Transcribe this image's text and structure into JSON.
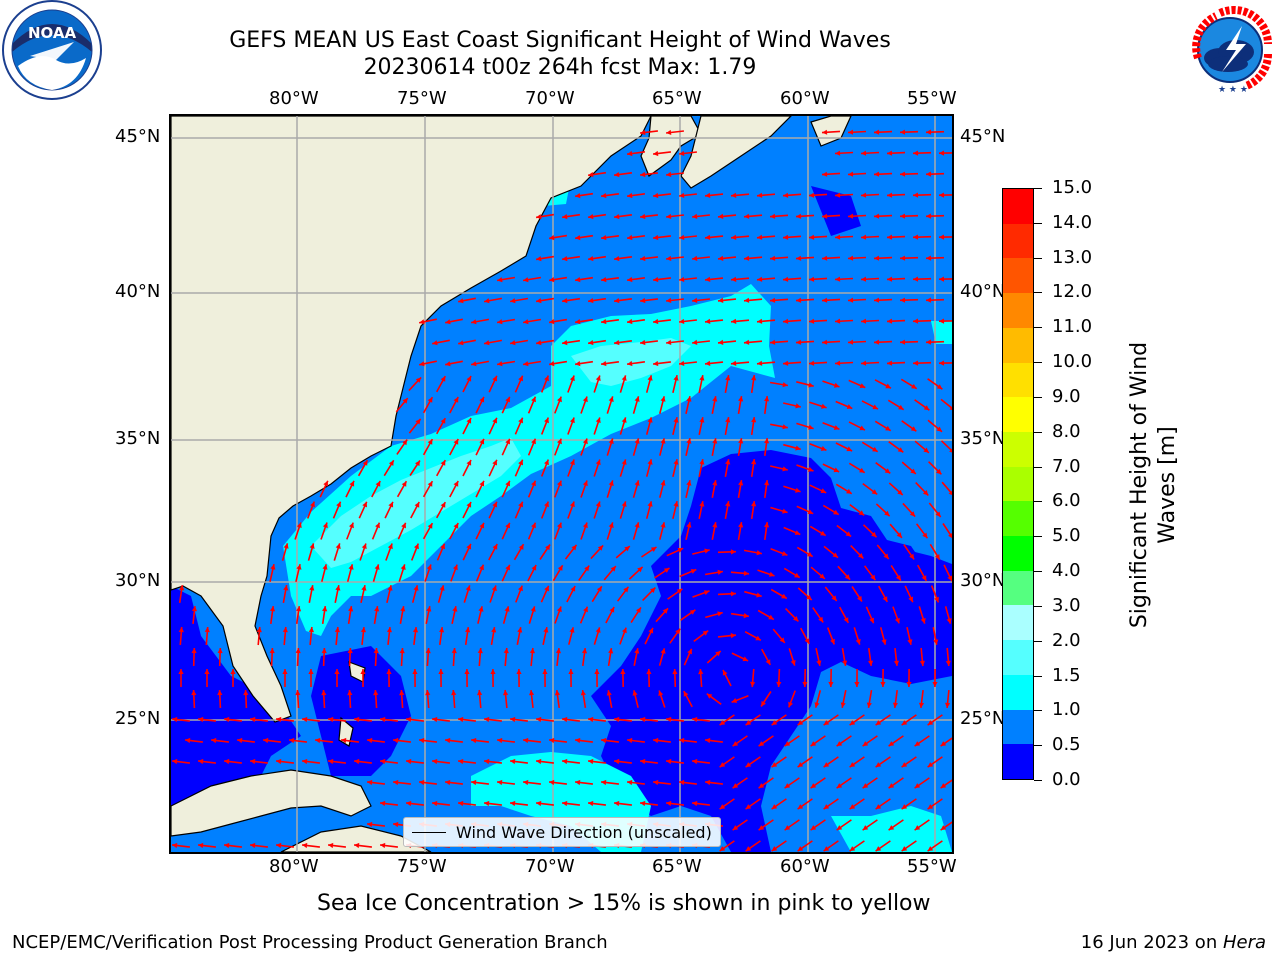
{
  "header": {
    "title_line1": "GEFS MEAN US East Coast Significant Height of Wind Waves",
    "title_line2": "20230614 t00z 264h fcst   Max: 1.79"
  },
  "logos": {
    "left": {
      "name": "noaa-logo",
      "text": "NOAA",
      "ring_text": "NATIONAL OCEANIC AND ATMOSPHERIC ADMINISTRATION · U.S. DEPARTMENT OF COMMERCE"
    },
    "right": {
      "name": "national-weather-service-logo",
      "ring_text": "NATIONAL WEATHER SERVICE"
    }
  },
  "map": {
    "lon_ticks": [
      "80°W",
      "75°W",
      "70°W",
      "65°W",
      "60°W",
      "55°W"
    ],
    "lat_ticks": [
      "45°N",
      "40°N",
      "35°N",
      "30°N",
      "25°N"
    ],
    "lon_range": [
      -85,
      -54.3
    ],
    "lat_range": [
      20.3,
      45.8
    ],
    "lon_values": [
      -80,
      -75,
      -70,
      -65,
      -60,
      -55
    ],
    "lat_values": [
      45,
      40,
      35,
      30,
      25
    ],
    "land_color": "#efefdc",
    "arrow_color": "#ff0000",
    "grid": true
  },
  "legend": {
    "label": "Wind Wave Direction (unscaled)"
  },
  "colorbar": {
    "label": "Significant Height of Wind Waves [m]",
    "label_line1": "Significant Height of Wind",
    "label_line2": "Waves [m]",
    "ticks": [
      "15.0",
      "14.0",
      "13.0",
      "12.0",
      "11.0",
      "10.0",
      "9.0",
      "8.0",
      "7.0",
      "6.0",
      "5.0",
      "4.0",
      "3.0",
      "2.0",
      "1.5",
      "1.0",
      "0.5",
      "0.0"
    ],
    "levels": [
      0.0,
      0.5,
      1.0,
      1.5,
      2.0,
      2.5,
      3.0,
      4.0,
      5.0,
      6.0,
      7.0,
      8.0,
      9.0,
      10.0,
      11.0,
      12.0,
      13.0,
      14.0,
      15.0
    ],
    "colors": [
      "#0000ff",
      "#0080ff",
      "#00ffff",
      "#55ffff",
      "#aaffff",
      "#55ff80",
      "#00ff00",
      "#55ff00",
      "#aaff00",
      "#ccff00",
      "#ffff00",
      "#ffe000",
      "#ffbb00",
      "#ff8800",
      "#ff5500",
      "#ff2a00",
      "#ff0000",
      "#ff0000"
    ]
  },
  "chart_data": {
    "type": "heatmap",
    "title": "GEFS MEAN US East Coast Significant Height of Wind Waves",
    "subtitle": "20230614 t00z 264h fcst   Max: 1.79",
    "max_value": 1.79,
    "units": "m"
  },
  "notes": {
    "sea_ice": "Sea Ice Concentration > 15% is shown in pink to yellow"
  },
  "footer": {
    "left": "NCEP/EMC/Verification Post Processing Product Generation Branch",
    "date": "16 Jun 2023 on ",
    "machine": "Hera"
  }
}
